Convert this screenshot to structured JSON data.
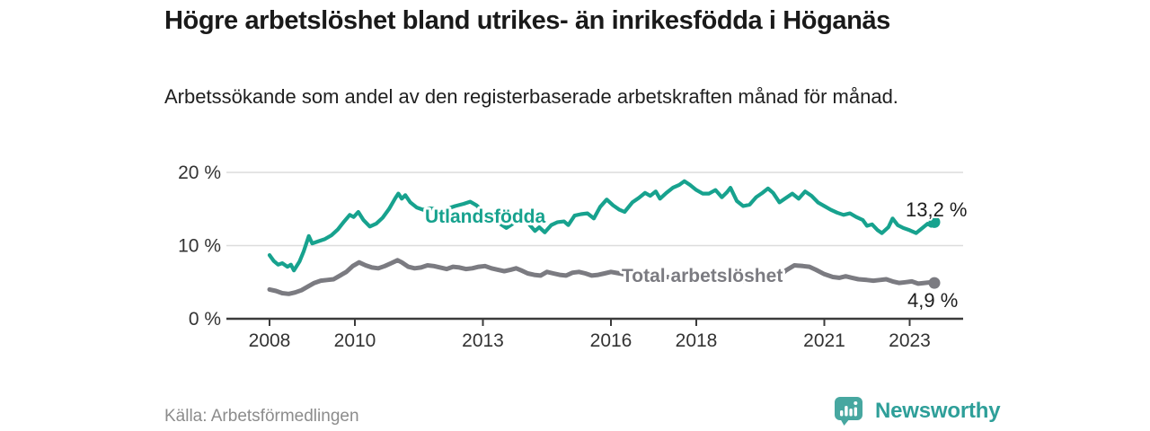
{
  "header": {
    "title": "Högre arbetslöshet bland utrikes- än inrikesfödda i Höganäs",
    "subtitle": "Arbetssökande som andel av den registerbaserade arbetskraften månad för månad."
  },
  "footer": {
    "source": "Källa: Arbetsförmedlingen",
    "brand": "Newsworthy"
  },
  "colors": {
    "foreign_born_line": "#17a28e",
    "total_line": "#7b7b81",
    "grid_line": "#dcdcdc",
    "axis_line": "#3b3b3b",
    "tick_text": "#333333",
    "value_label_text": "#1d1d1d",
    "source_text": "#8c8c8c",
    "brand_text": "#2e9f99",
    "brand_icon": "#47a7a0"
  },
  "chart_data": {
    "type": "line",
    "title": "Högre arbetslöshet bland utrikes- än inrikesfödda i Höganäs",
    "subtitle": "Arbetssökande som andel av den registerbaserade arbetskraften månad för månad.",
    "x_unit": "år (månadsdata, decimalår)",
    "y_unit": "%",
    "xlim": [
      2007.0,
      2024.3
    ],
    "ylim": [
      0,
      20
    ],
    "x_ticks": [
      2008,
      2010,
      2013,
      2016,
      2018,
      2021,
      2023
    ],
    "y_ticks": [
      0,
      10,
      20
    ],
    "y_tick_labels": [
      "0 %",
      "10 %",
      "20 %"
    ],
    "grid": "horizontal",
    "legend": "inline-labels",
    "series": [
      {
        "name": "Utlandsfödda",
        "color": "#17a28e",
        "end_label": "13,2 %",
        "end_value": 13.2,
        "points": [
          [
            2008.0,
            8.7
          ],
          [
            2008.1,
            7.9
          ],
          [
            2008.2,
            7.4
          ],
          [
            2008.3,
            7.6
          ],
          [
            2008.42,
            7.1
          ],
          [
            2008.5,
            7.4
          ],
          [
            2008.57,
            6.6
          ],
          [
            2008.7,
            7.8
          ],
          [
            2008.8,
            9.2
          ],
          [
            2008.92,
            11.3
          ],
          [
            2009.0,
            10.3
          ],
          [
            2009.15,
            10.6
          ],
          [
            2009.3,
            10.9
          ],
          [
            2009.45,
            11.4
          ],
          [
            2009.6,
            12.2
          ],
          [
            2009.75,
            13.3
          ],
          [
            2009.88,
            14.2
          ],
          [
            2009.97,
            13.9
          ],
          [
            2010.08,
            14.6
          ],
          [
            2010.2,
            13.5
          ],
          [
            2010.35,
            12.6
          ],
          [
            2010.5,
            13.0
          ],
          [
            2010.65,
            13.8
          ],
          [
            2010.8,
            15.0
          ],
          [
            2010.95,
            16.5
          ],
          [
            2011.02,
            17.1
          ],
          [
            2011.1,
            16.4
          ],
          [
            2011.18,
            16.9
          ],
          [
            2011.3,
            15.9
          ],
          [
            2011.45,
            15.2
          ],
          [
            2011.6,
            14.9
          ],
          [
            2011.75,
            15.1
          ],
          [
            2011.9,
            15.0
          ],
          [
            2012.05,
            14.8
          ],
          [
            2012.2,
            15.1
          ],
          [
            2012.35,
            15.4
          ],
          [
            2012.55,
            15.7
          ],
          [
            2012.7,
            16.0
          ],
          [
            2012.85,
            15.5
          ],
          [
            2013.0,
            14.7
          ],
          [
            2013.2,
            13.8
          ],
          [
            2013.4,
            13.0
          ],
          [
            2013.55,
            12.4
          ],
          [
            2013.7,
            13.0
          ],
          [
            2013.85,
            13.6
          ],
          [
            2013.95,
            14.0
          ],
          [
            2014.1,
            12.8
          ],
          [
            2014.22,
            12.0
          ],
          [
            2014.32,
            12.5
          ],
          [
            2014.45,
            11.8
          ],
          [
            2014.6,
            12.8
          ],
          [
            2014.75,
            13.2
          ],
          [
            2014.9,
            13.3
          ],
          [
            2015.0,
            12.8
          ],
          [
            2015.15,
            14.1
          ],
          [
            2015.3,
            14.3
          ],
          [
            2015.45,
            14.4
          ],
          [
            2015.6,
            13.7
          ],
          [
            2015.75,
            15.3
          ],
          [
            2015.9,
            16.3
          ],
          [
            2016.05,
            15.5
          ],
          [
            2016.2,
            14.9
          ],
          [
            2016.32,
            14.6
          ],
          [
            2016.5,
            15.9
          ],
          [
            2016.65,
            16.5
          ],
          [
            2016.8,
            17.2
          ],
          [
            2016.92,
            16.8
          ],
          [
            2017.05,
            17.4
          ],
          [
            2017.15,
            16.4
          ],
          [
            2017.3,
            17.2
          ],
          [
            2017.45,
            17.9
          ],
          [
            2017.6,
            18.3
          ],
          [
            2017.72,
            18.8
          ],
          [
            2017.85,
            18.3
          ],
          [
            2018.0,
            17.6
          ],
          [
            2018.15,
            17.1
          ],
          [
            2018.3,
            17.1
          ],
          [
            2018.45,
            17.6
          ],
          [
            2018.6,
            16.6
          ],
          [
            2018.72,
            17.3
          ],
          [
            2018.8,
            17.9
          ],
          [
            2018.95,
            16.1
          ],
          [
            2019.1,
            15.4
          ],
          [
            2019.25,
            15.6
          ],
          [
            2019.4,
            16.6
          ],
          [
            2019.55,
            17.2
          ],
          [
            2019.68,
            17.8
          ],
          [
            2019.8,
            17.2
          ],
          [
            2019.95,
            15.9
          ],
          [
            2020.1,
            16.5
          ],
          [
            2020.25,
            17.1
          ],
          [
            2020.4,
            16.4
          ],
          [
            2020.55,
            17.4
          ],
          [
            2020.7,
            16.8
          ],
          [
            2020.85,
            15.9
          ],
          [
            2021.0,
            15.4
          ],
          [
            2021.15,
            14.9
          ],
          [
            2021.3,
            14.5
          ],
          [
            2021.45,
            14.2
          ],
          [
            2021.6,
            14.4
          ],
          [
            2021.75,
            13.9
          ],
          [
            2021.9,
            13.5
          ],
          [
            2022.0,
            12.7
          ],
          [
            2022.12,
            12.9
          ],
          [
            2022.25,
            12.1
          ],
          [
            2022.35,
            11.7
          ],
          [
            2022.5,
            12.5
          ],
          [
            2022.6,
            13.7
          ],
          [
            2022.72,
            12.8
          ],
          [
            2022.85,
            12.4
          ],
          [
            2023.0,
            12.1
          ],
          [
            2023.15,
            11.7
          ],
          [
            2023.3,
            12.4
          ],
          [
            2023.42,
            13.0
          ],
          [
            2023.5,
            12.7
          ],
          [
            2023.58,
            13.2
          ]
        ]
      },
      {
        "name": "Total arbetslöshet",
        "color": "#7b7b81",
        "end_label": "4,9 %",
        "end_value": 4.9,
        "points": [
          [
            2008.0,
            4.0
          ],
          [
            2008.15,
            3.8
          ],
          [
            2008.3,
            3.5
          ],
          [
            2008.45,
            3.4
          ],
          [
            2008.6,
            3.6
          ],
          [
            2008.75,
            3.9
          ],
          [
            2008.9,
            4.4
          ],
          [
            2009.05,
            4.9
          ],
          [
            2009.2,
            5.2
          ],
          [
            2009.35,
            5.3
          ],
          [
            2009.5,
            5.4
          ],
          [
            2009.65,
            5.9
          ],
          [
            2009.8,
            6.4
          ],
          [
            2009.95,
            7.2
          ],
          [
            2010.1,
            7.7
          ],
          [
            2010.25,
            7.3
          ],
          [
            2010.4,
            7.0
          ],
          [
            2010.55,
            6.9
          ],
          [
            2010.7,
            7.2
          ],
          [
            2010.85,
            7.6
          ],
          [
            2011.0,
            8.0
          ],
          [
            2011.1,
            7.7
          ],
          [
            2011.25,
            7.1
          ],
          [
            2011.4,
            6.9
          ],
          [
            2011.55,
            7.0
          ],
          [
            2011.7,
            7.3
          ],
          [
            2011.85,
            7.2
          ],
          [
            2012.0,
            7.0
          ],
          [
            2012.15,
            6.8
          ],
          [
            2012.3,
            7.1
          ],
          [
            2012.45,
            7.0
          ],
          [
            2012.6,
            6.8
          ],
          [
            2012.75,
            6.9
          ],
          [
            2012.9,
            7.1
          ],
          [
            2013.05,
            7.2
          ],
          [
            2013.2,
            6.9
          ],
          [
            2013.35,
            6.7
          ],
          [
            2013.5,
            6.5
          ],
          [
            2013.65,
            6.7
          ],
          [
            2013.78,
            6.9
          ],
          [
            2013.9,
            6.6
          ],
          [
            2014.05,
            6.2
          ],
          [
            2014.2,
            6.0
          ],
          [
            2014.35,
            5.9
          ],
          [
            2014.5,
            6.4
          ],
          [
            2014.65,
            6.2
          ],
          [
            2014.8,
            6.0
          ],
          [
            2014.95,
            5.9
          ],
          [
            2015.1,
            6.3
          ],
          [
            2015.25,
            6.4
          ],
          [
            2015.4,
            6.2
          ],
          [
            2015.55,
            5.9
          ],
          [
            2015.7,
            6.0
          ],
          [
            2015.85,
            6.2
          ],
          [
            2016.0,
            6.4
          ],
          [
            2016.2,
            6.2
          ],
          [
            2016.4,
            6.0
          ],
          [
            2016.6,
            6.0
          ],
          [
            2016.8,
            5.9
          ],
          [
            2017.0,
            5.8
          ],
          [
            2017.3,
            5.7
          ],
          [
            2017.6,
            5.6
          ],
          [
            2017.9,
            5.5
          ],
          [
            2018.2,
            5.4
          ],
          [
            2018.5,
            5.3
          ],
          [
            2018.8,
            5.2
          ],
          [
            2019.1,
            5.2
          ],
          [
            2019.4,
            5.4
          ],
          [
            2019.7,
            5.4
          ],
          [
            2019.9,
            5.6
          ],
          [
            2020.1,
            6.6
          ],
          [
            2020.3,
            7.3
          ],
          [
            2020.5,
            7.2
          ],
          [
            2020.65,
            7.1
          ],
          [
            2020.8,
            6.7
          ],
          [
            2021.0,
            6.1
          ],
          [
            2021.2,
            5.7
          ],
          [
            2021.35,
            5.6
          ],
          [
            2021.5,
            5.8
          ],
          [
            2021.65,
            5.6
          ],
          [
            2021.8,
            5.4
          ],
          [
            2022.0,
            5.3
          ],
          [
            2022.15,
            5.2
          ],
          [
            2022.3,
            5.3
          ],
          [
            2022.45,
            5.4
          ],
          [
            2022.6,
            5.1
          ],
          [
            2022.75,
            4.9
          ],
          [
            2022.9,
            5.0
          ],
          [
            2023.05,
            5.1
          ],
          [
            2023.2,
            4.8
          ],
          [
            2023.35,
            4.9
          ],
          [
            2023.5,
            5.0
          ],
          [
            2023.58,
            4.9
          ]
        ]
      }
    ]
  }
}
